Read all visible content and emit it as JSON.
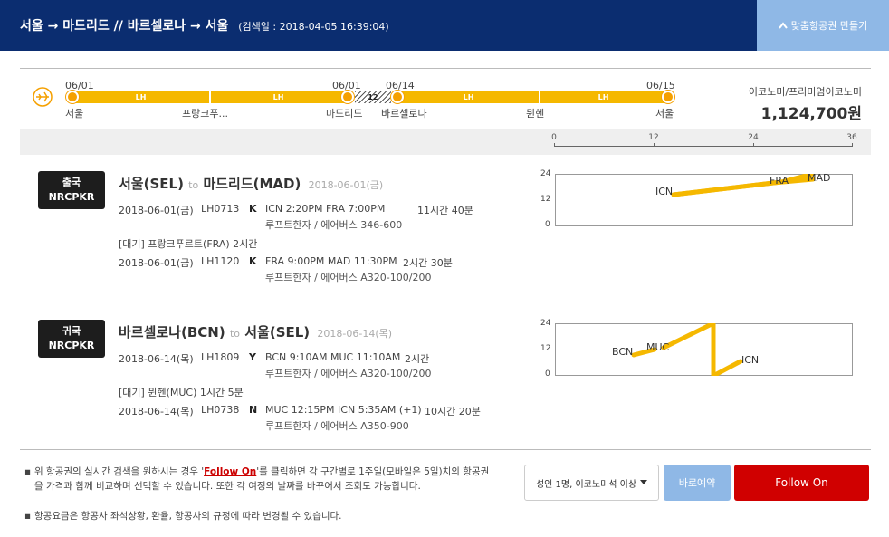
{
  "header": {
    "route": "서울 → 마드리드 // 바르셀로나 → 서울",
    "search_time": "(검색일 : 2018-04-05 16:39:04)",
    "custom_button": "맞춤항공권 만들기"
  },
  "timeline": {
    "segments": [
      {
        "carrier": "LH",
        "kind": "flight"
      },
      {
        "carrier": "LH",
        "kind": "flight"
      },
      {
        "carrier": "12",
        "kind": "stay"
      },
      {
        "carrier": "LH",
        "kind": "flight"
      },
      {
        "carrier": "LH",
        "kind": "flight"
      }
    ],
    "dates": [
      "06/01",
      "06/01",
      "06/14",
      "06/15"
    ],
    "cities": [
      "서울",
      "프랑크푸...",
      "마드리드",
      "바르셀로나",
      "뮌헨",
      "서울"
    ]
  },
  "price": {
    "cabin": "이코노미/프리미엄이코노미",
    "amount": "1,124,700원"
  },
  "axis": {
    "ticks": [
      "0",
      "12",
      "24",
      "36"
    ]
  },
  "legs": [
    {
      "badge_line1": "출국",
      "badge_line2": "NRCPKR",
      "from": "서울(SEL)",
      "to_word": "to",
      "to": "마드리드(MAD)",
      "date": "2018-06-01(금)",
      "flights": [
        {
          "date": "2018-06-01(금)",
          "flight": "LH0713",
          "class": "K",
          "route": "ICN 2:20PM FRA 7:00PM",
          "duration": "11시간 40분",
          "airline": "루프트한자 / 에어버스 346-600"
        },
        {
          "date": "2018-06-01(금)",
          "flight": "LH1120",
          "class": "K",
          "route": "FRA 9:00PM MAD 11:30PM",
          "duration": "2시간 30분",
          "airline": "루프트한자 / 에어버스 A320-100/200"
        }
      ],
      "layover": "[대기] 프랑크푸르트(FRA)   2시간",
      "mini_chart": {
        "y_ticks": [
          "24",
          "12",
          "0"
        ],
        "airports": [
          "ICN",
          "FRA",
          "MAD"
        ],
        "path_hours": [
          [
            14.3,
            14.3
          ],
          [
            19,
            19
          ],
          [
            21,
            21
          ],
          [
            23.5,
            23.5
          ]
        ]
      }
    },
    {
      "badge_line1": "귀국",
      "badge_line2": "NRCPKR",
      "from": "바르셀로나(BCN)",
      "to_word": "to",
      "to": "서울(SEL)",
      "date": "2018-06-14(목)",
      "flights": [
        {
          "date": "2018-06-14(목)",
          "flight": "LH1809",
          "class": "Y",
          "route": "BCN 9:10AM MUC 11:10AM",
          "duration": "2시간",
          "airline": "루프트한자 / 에어버스 A320-100/200"
        },
        {
          "date": "2018-06-14(목)",
          "flight": "LH0738",
          "class": "N",
          "route": "MUC 12:15PM ICN 5:35AM (+1)",
          "duration": "10시간 20분",
          "airline": "루프트한자 / 에어버스 A350-900"
        }
      ],
      "layover": "[대기] 뮌헨(MUC)   1시간 5분",
      "mini_chart": {
        "y_ticks": [
          "24",
          "12",
          "0"
        ],
        "airports": [
          "BCN",
          "MUC",
          "ICN"
        ]
      }
    }
  ],
  "footer": {
    "note1_pre": "위 항공권의 실시간 검색을 원하시는 경우 '",
    "note1_link": "Follow On",
    "note1_post": "'를 클릭하면 각 구간별로 1주일(모바일은 5일)치의 항공권을 가격과 함께 비교하며 선택할 수 있습니다. 또한 각 여정의 날짜를 바꾸어서 조회도 가능합니다.",
    "note2": "항공요금은 항공사 좌석상황, 환율, 항공사의 규정에 따라 변경될 수 있습니다.",
    "pax_select": "성인 1명, 이코노미석 이상",
    "book_button": "바로예약",
    "follow_button": "Follow On"
  },
  "colors": {
    "header": "#0b2d70",
    "accent": "#f5b800",
    "follow": "#d00000",
    "light_button": "#8fb8e6"
  }
}
